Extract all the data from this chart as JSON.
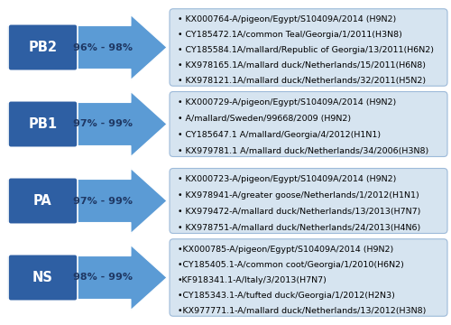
{
  "segments": [
    {
      "label": "PB2",
      "similarity": "96% - 98%",
      "viruses": [
        "• KX000764-A/pigeon/Egypt/S10409A/2014 (H9N2)",
        "• CY185472.1A/common Teal/Georgia/1/2011(H3N8)",
        "• CY185584.1A/mallard/Republic of Georgia/13/2011(H6N2)",
        "• KX978165.1A/mallard duck/Netherlands/15/2011(H6N8)",
        "• KX978121.1A/mallard duck/Netherlands/32/2011(H5N2)"
      ]
    },
    {
      "label": "PB1",
      "similarity": "97% - 99%",
      "viruses": [
        "• KX000729-A/pigeon/Egypt/S10409A/2014 (H9N2)",
        "• A/mallard/Sweden/99668/2009 (H9N2)",
        "• CY185647.1 A/mallard/Georgia/4/2012(H1N1)",
        "• KX979781.1 A/mallard duck/Netherlands/34/2006(H3N8)"
      ]
    },
    {
      "label": "PA",
      "similarity": "97% - 99%",
      "viruses": [
        "• KX000723-A/pigeon/Egypt/S10409A/2014 (H9N2)",
        "• KX978941-A/greater goose/Netherlands/1/2012(H1N1)",
        "• KX979472-A/mallard duck/Netherlands/13/2013(H7N7)",
        "• KX978751-A/mallard duck/Netherlands/24/2013(H4N6)"
      ]
    },
    {
      "label": "NS",
      "similarity": "98% - 99%",
      "viruses": [
        "•KX000785-A/pigeon/Egypt/S10409A/2014 (H9N2)",
        "•CY185405.1-A/common coot/Georgia/1/2010(H6N2)",
        "•KF918341.1-A/Italy/3/2013(H7N7)",
        "•CY185343.1-A/tufted duck/Georgia/1/2012(H2N3)",
        "•KX977771.1-A/mallard duck/Netherlands/13/2012(H3N8)"
      ]
    }
  ],
  "arrow_body_color": "#4472C4",
  "arrow_lighter_color": "#5B9BD5",
  "label_box_color": "#2E5FA3",
  "label_text_color": "white",
  "similarity_text_color": "#1F3864",
  "virus_box_color": "#D6E4F0",
  "virus_box_border": "#9DBAD9",
  "virus_text_color": "black",
  "background_color": "white",
  "label_fontsize": 10.5,
  "similarity_fontsize": 8.0,
  "virus_fontsize": 6.8
}
